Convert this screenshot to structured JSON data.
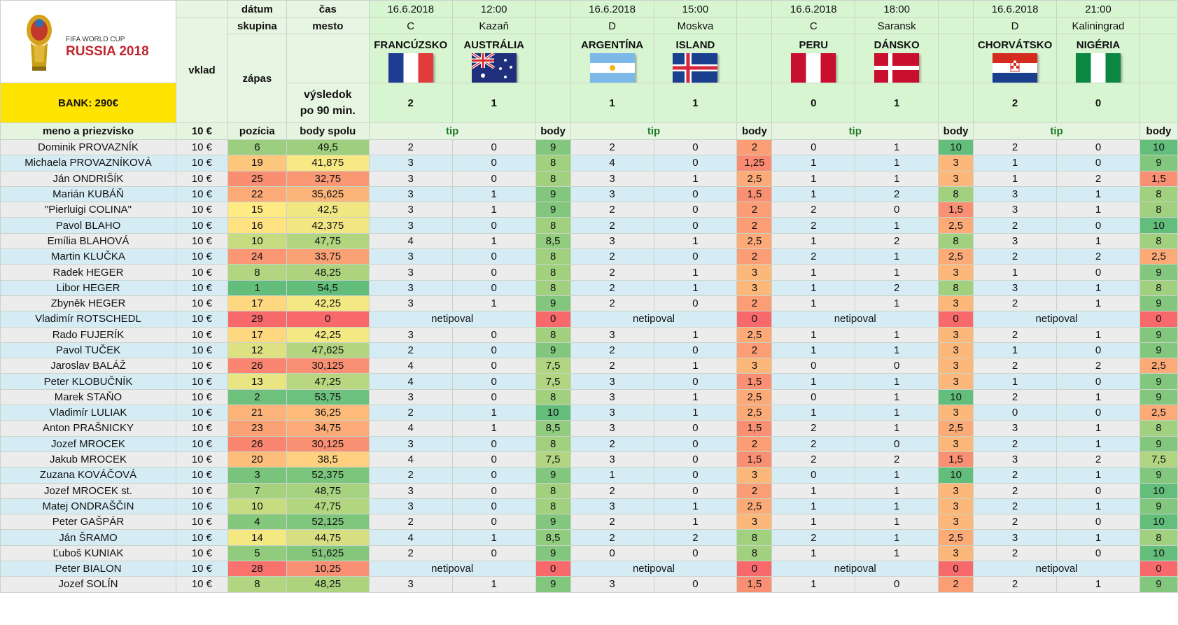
{
  "header": {
    "datum_label": "dátum",
    "cas_label": "čas",
    "skupina_label": "skupina",
    "mesto_label": "mesto",
    "vklad_label": "vklad",
    "zapas_label": "zápas",
    "vysledok_label_1": "výsledok",
    "vysledok_label_2": "po 90 min.",
    "bank": "BANK: 290€",
    "meno_label": "meno a priezvisko",
    "vklad_amount": "10 €",
    "pozicia_label": "pozícia",
    "body_spolu_label": "body spolu",
    "tip_label": "tip",
    "body_label": "body",
    "logo_line1": "FIFA WORLD CUP",
    "logo_line2": "RUSSIA 2018"
  },
  "matches": [
    {
      "date": "16.6.2018",
      "time": "12:00",
      "group": "C",
      "city": "Kazaň",
      "home": "FRANCÚZSKO",
      "away": "AUSTRÁLIA",
      "home_score": "2",
      "away_score": "1",
      "home_flag": "france-flag",
      "away_flag": "australia-flag"
    },
    {
      "date": "16.6.2018",
      "time": "15:00",
      "group": "D",
      "city": "Moskva",
      "home": "ARGENTÍNA",
      "away": "ISLAND",
      "home_score": "1",
      "away_score": "1",
      "home_flag": "argentina-flag",
      "away_flag": "iceland-flag"
    },
    {
      "date": "16.6.2018",
      "time": "18:00",
      "group": "C",
      "city": "Saransk",
      "home": "PERU",
      "away": "DÁNSKO",
      "home_score": "0",
      "away_score": "1",
      "home_flag": "peru-flag",
      "away_flag": "denmark-flag"
    },
    {
      "date": "16.6.2018",
      "time": "21:00",
      "group": "D",
      "city": "Kaliningrad",
      "home": "CHORVÁTSKO",
      "away": "NIGÉRIA",
      "home_score": "2",
      "away_score": "0",
      "home_flag": "croatia-flag",
      "away_flag": "nigeria-flag"
    }
  ],
  "not_tipped": "netipoval",
  "players": [
    {
      "name": "Dominik PROVAZNÍK",
      "stake": "10 €",
      "pos": "6",
      "total": "49,5",
      "m": [
        [
          "2",
          "0",
          "9"
        ],
        [
          "2",
          "0",
          "2"
        ],
        [
          "0",
          "1",
          "10"
        ],
        [
          "2",
          "0",
          "10"
        ]
      ]
    },
    {
      "name": "Michaela PROVAZNÍKOVÁ",
      "stake": "10 €",
      "pos": "19",
      "total": "41,875",
      "m": [
        [
          "3",
          "0",
          "8"
        ],
        [
          "4",
          "0",
          "1,25"
        ],
        [
          "1",
          "1",
          "3"
        ],
        [
          "1",
          "0",
          "9"
        ]
      ]
    },
    {
      "name": "Ján ONDRIŠÍK",
      "stake": "10 €",
      "pos": "25",
      "total": "32,75",
      "m": [
        [
          "3",
          "0",
          "8"
        ],
        [
          "3",
          "1",
          "2,5"
        ],
        [
          "1",
          "1",
          "3"
        ],
        [
          "1",
          "2",
          "1,5"
        ]
      ]
    },
    {
      "name": "Marián KUBÁŇ",
      "stake": "10 €",
      "pos": "22",
      "total": "35,625",
      "m": [
        [
          "3",
          "1",
          "9"
        ],
        [
          "3",
          "0",
          "1,5"
        ],
        [
          "1",
          "2",
          "8"
        ],
        [
          "3",
          "1",
          "8"
        ]
      ]
    },
    {
      "name": "\"Pierluigi COLINA\"",
      "stake": "10 €",
      "pos": "15",
      "total": "42,5",
      "m": [
        [
          "3",
          "1",
          "9"
        ],
        [
          "2",
          "0",
          "2"
        ],
        [
          "2",
          "0",
          "1,5"
        ],
        [
          "3",
          "1",
          "8"
        ]
      ]
    },
    {
      "name": "Pavol BLAHO",
      "stake": "10 €",
      "pos": "16",
      "total": "42,375",
      "m": [
        [
          "3",
          "0",
          "8"
        ],
        [
          "2",
          "0",
          "2"
        ],
        [
          "2",
          "1",
          "2,5"
        ],
        [
          "2",
          "0",
          "10"
        ]
      ]
    },
    {
      "name": "Emília BLAHOVÁ",
      "stake": "10 €",
      "pos": "10",
      "total": "47,75",
      "m": [
        [
          "4",
          "1",
          "8,5"
        ],
        [
          "3",
          "1",
          "2,5"
        ],
        [
          "1",
          "2",
          "8"
        ],
        [
          "3",
          "1",
          "8"
        ]
      ]
    },
    {
      "name": "Martin KLUČKA",
      "stake": "10 €",
      "pos": "24",
      "total": "33,75",
      "m": [
        [
          "3",
          "0",
          "8"
        ],
        [
          "2",
          "0",
          "2"
        ],
        [
          "2",
          "1",
          "2,5"
        ],
        [
          "2",
          "2",
          "2,5"
        ]
      ]
    },
    {
      "name": "Radek HEGER",
      "stake": "10 €",
      "pos": "8",
      "total": "48,25",
      "m": [
        [
          "3",
          "0",
          "8"
        ],
        [
          "2",
          "1",
          "3"
        ],
        [
          "1",
          "1",
          "3"
        ],
        [
          "1",
          "0",
          "9"
        ]
      ]
    },
    {
      "name": "Libor HEGER",
      "stake": "10 €",
      "pos": "1",
      "total": "54,5",
      "m": [
        [
          "3",
          "0",
          "8"
        ],
        [
          "2",
          "1",
          "3"
        ],
        [
          "1",
          "2",
          "8"
        ],
        [
          "3",
          "1",
          "8"
        ]
      ]
    },
    {
      "name": "Zbyněk HEGER",
      "stake": "10 €",
      "pos": "17",
      "total": "42,25",
      "m": [
        [
          "3",
          "1",
          "9"
        ],
        [
          "2",
          "0",
          "2"
        ],
        [
          "1",
          "1",
          "3"
        ],
        [
          "2",
          "1",
          "9"
        ]
      ]
    },
    {
      "name": "Vladimír ROTSCHEDL",
      "stake": "10 €",
      "pos": "29",
      "total": "0",
      "nt": true,
      "m": [
        [
          "",
          "",
          "0"
        ],
        [
          "",
          "",
          "0"
        ],
        [
          "",
          "",
          "0"
        ],
        [
          "",
          "",
          "0"
        ]
      ]
    },
    {
      "name": "Rado FUJERÍK",
      "stake": "10 €",
      "pos": "17",
      "total": "42,25",
      "m": [
        [
          "3",
          "0",
          "8"
        ],
        [
          "3",
          "1",
          "2,5"
        ],
        [
          "1",
          "1",
          "3"
        ],
        [
          "2",
          "1",
          "9"
        ]
      ]
    },
    {
      "name": "Pavol TUČEK",
      "stake": "10 €",
      "pos": "12",
      "total": "47,625",
      "m": [
        [
          "2",
          "0",
          "9"
        ],
        [
          "2",
          "0",
          "2"
        ],
        [
          "1",
          "1",
          "3"
        ],
        [
          "1",
          "0",
          "9"
        ]
      ]
    },
    {
      "name": "Jaroslav BALÁŽ",
      "stake": "10 €",
      "pos": "26",
      "total": "30,125",
      "m": [
        [
          "4",
          "0",
          "7,5"
        ],
        [
          "2",
          "1",
          "3"
        ],
        [
          "0",
          "0",
          "3"
        ],
        [
          "2",
          "2",
          "2,5"
        ]
      ]
    },
    {
      "name": "Peter KLOBUČNÍK",
      "stake": "10 €",
      "pos": "13",
      "total": "47,25",
      "m": [
        [
          "4",
          "0",
          "7,5"
        ],
        [
          "3",
          "0",
          "1,5"
        ],
        [
          "1",
          "1",
          "3"
        ],
        [
          "1",
          "0",
          "9"
        ]
      ]
    },
    {
      "name": "Marek STAŇO",
      "stake": "10 €",
      "pos": "2",
      "total": "53,75",
      "m": [
        [
          "3",
          "0",
          "8"
        ],
        [
          "3",
          "1",
          "2,5"
        ],
        [
          "0",
          "1",
          "10"
        ],
        [
          "2",
          "1",
          "9"
        ]
      ]
    },
    {
      "name": "Vladimír LULIAK",
      "stake": "10 €",
      "pos": "21",
      "total": "36,25",
      "m": [
        [
          "2",
          "1",
          "10"
        ],
        [
          "3",
          "1",
          "2,5"
        ],
        [
          "1",
          "1",
          "3"
        ],
        [
          "0",
          "0",
          "2,5"
        ]
      ]
    },
    {
      "name": "Anton PRAŠNICKY",
      "stake": "10 €",
      "pos": "23",
      "total": "34,75",
      "m": [
        [
          "4",
          "1",
          "8,5"
        ],
        [
          "3",
          "0",
          "1,5"
        ],
        [
          "2",
          "1",
          "2,5"
        ],
        [
          "3",
          "1",
          "8"
        ]
      ]
    },
    {
      "name": "Jozef MROCEK",
      "stake": "10 €",
      "pos": "26",
      "total": "30,125",
      "m": [
        [
          "3",
          "0",
          "8"
        ],
        [
          "2",
          "0",
          "2"
        ],
        [
          "2",
          "0",
          "3"
        ],
        [
          "2",
          "1",
          "9"
        ]
      ]
    },
    {
      "name": "Jakub MROCEK",
      "stake": "10 €",
      "pos": "20",
      "total": "38,5",
      "m": [
        [
          "4",
          "0",
          "7,5"
        ],
        [
          "3",
          "0",
          "1,5"
        ],
        [
          "2",
          "2",
          "1,5"
        ],
        [
          "3",
          "2",
          "7,5"
        ]
      ]
    },
    {
      "name": "Zuzana KOVÁČOVÁ",
      "stake": "10 €",
      "pos": "3",
      "total": "52,375",
      "m": [
        [
          "2",
          "0",
          "9"
        ],
        [
          "1",
          "0",
          "3"
        ],
        [
          "0",
          "1",
          "10"
        ],
        [
          "2",
          "1",
          "9"
        ]
      ]
    },
    {
      "name": "Jozef MROCEK st.",
      "stake": "10 €",
      "pos": "7",
      "total": "48,75",
      "m": [
        [
          "3",
          "0",
          "8"
        ],
        [
          "2",
          "0",
          "2"
        ],
        [
          "1",
          "1",
          "3"
        ],
        [
          "2",
          "0",
          "10"
        ]
      ]
    },
    {
      "name": "Matej ONDRAŠČIN",
      "stake": "10 €",
      "pos": "10",
      "total": "47,75",
      "m": [
        [
          "3",
          "0",
          "8"
        ],
        [
          "3",
          "1",
          "2,5"
        ],
        [
          "1",
          "1",
          "3"
        ],
        [
          "2",
          "1",
          "9"
        ]
      ]
    },
    {
      "name": "Peter GAŠPÁR",
      "stake": "10 €",
      "pos": "4",
      "total": "52,125",
      "m": [
        [
          "2",
          "0",
          "9"
        ],
        [
          "2",
          "1",
          "3"
        ],
        [
          "1",
          "1",
          "3"
        ],
        [
          "2",
          "0",
          "10"
        ]
      ]
    },
    {
      "name": "Ján ŠRAMO",
      "stake": "10 €",
      "pos": "14",
      "total": "44,75",
      "m": [
        [
          "4",
          "1",
          "8,5"
        ],
        [
          "2",
          "2",
          "8"
        ],
        [
          "2",
          "1",
          "2,5"
        ],
        [
          "3",
          "1",
          "8"
        ]
      ]
    },
    {
      "name": "Ľuboš KUNIAK",
      "stake": "10 €",
      "pos": "5",
      "total": "51,625",
      "m": [
        [
          "2",
          "0",
          "9"
        ],
        [
          "0",
          "0",
          "8"
        ],
        [
          "1",
          "1",
          "3"
        ],
        [
          "2",
          "0",
          "10"
        ]
      ]
    },
    {
      "name": "Peter BIALON",
      "stake": "10 €",
      "pos": "28",
      "total": "10,25",
      "nt": true,
      "m": [
        [
          "",
          "",
          "0"
        ],
        [
          "",
          "",
          "0"
        ],
        [
          "",
          "",
          "0"
        ],
        [
          "",
          "",
          "0"
        ]
      ]
    },
    {
      "name": "Jozef SOLÍN",
      "stake": "10 €",
      "pos": "8",
      "total": "48,25",
      "m": [
        [
          "3",
          "1",
          "9"
        ],
        [
          "3",
          "0",
          "1,5"
        ],
        [
          "1",
          "0",
          "2"
        ],
        [
          "2",
          "1",
          "9"
        ]
      ]
    }
  ]
}
